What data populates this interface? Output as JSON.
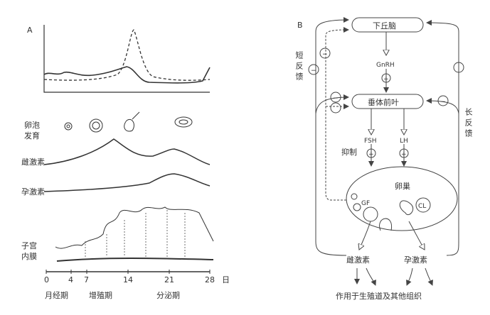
{
  "panel_a": {
    "label": "A",
    "rows": {
      "follicle": "卵泡发育",
      "estrogen": "雌激素",
      "progesterone": "孕激素",
      "endometrium": "子宫内膜"
    },
    "axis_ticks": [
      "0",
      "4",
      "7",
      "14",
      "21",
      "28"
    ],
    "axis_unit": "日",
    "phases": [
      "月经期",
      "增殖期",
      "分泌期"
    ]
  },
  "panel_b": {
    "label": "B",
    "hypothalamus": "下丘脑",
    "gnrh": "GnRH",
    "pituitary": "垂体前叶",
    "fsh": "FSH",
    "lh": "LH",
    "ovary": "卵巢",
    "gf": "GF",
    "cl": "CL",
    "estrogen": "雌激素",
    "progesterone": "孕激素",
    "short_feedback": "短反馈",
    "long_feedback": "长反馈",
    "inhibit": "抑制",
    "target": "作用于生殖道及其他组织",
    "plus": "+",
    "minus": "−"
  }
}
